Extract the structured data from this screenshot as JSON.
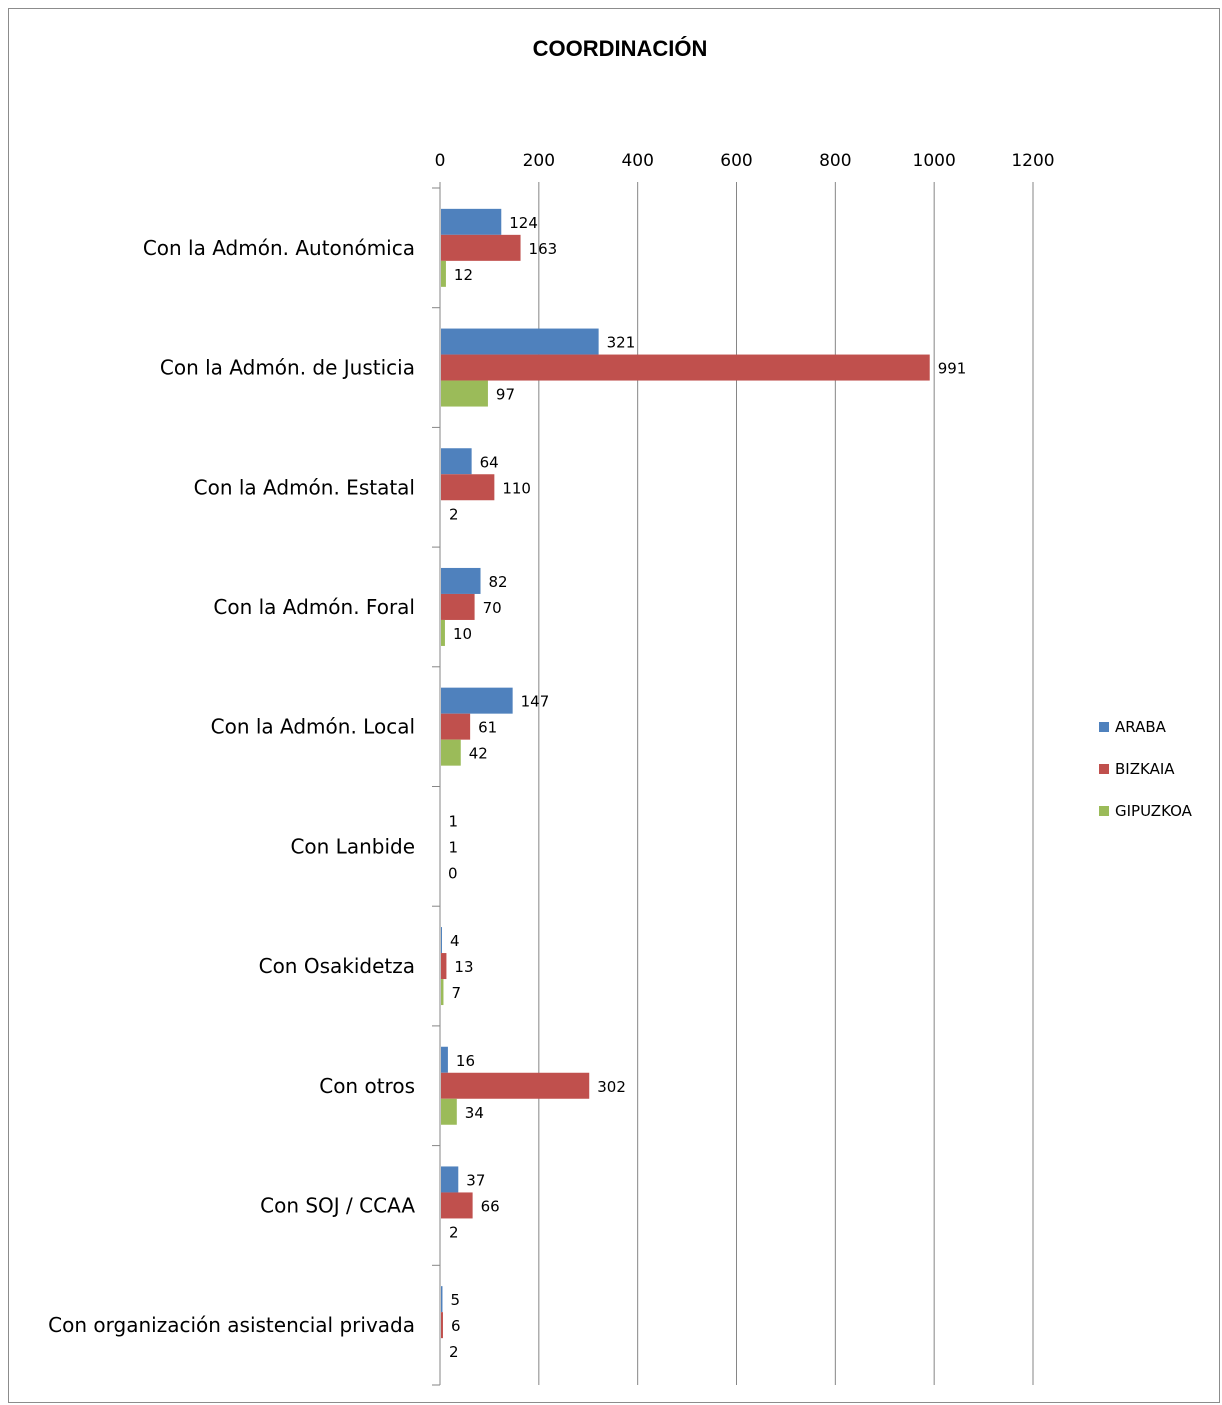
{
  "chart_data": {
    "type": "bar",
    "orientation": "horizontal",
    "title": "COORDINACIÓN",
    "xlim": [
      0,
      1200
    ],
    "ticks": [
      0,
      200,
      400,
      600,
      800,
      1000,
      1200
    ],
    "tick_labels": [
      "0",
      "200",
      "400",
      "600",
      "800",
      "1000",
      "1200"
    ],
    "x_axis_position": "top",
    "grid": true,
    "legend_position": "right",
    "categories": [
      "Con la Admón. Autonómica",
      "Con la Admón. de Justicia",
      "Con la Admón. Estatal",
      "Con la Admón. Foral",
      "Con la Admón. Local",
      "Con Lanbide",
      "Con Osakidetza",
      "Con otros",
      "Con SOJ / CCAA",
      "Con organización asistencial privada"
    ],
    "series": [
      {
        "name": "ARABA",
        "color": "#4f81bd",
        "values": [
          124,
          321,
          64,
          82,
          147,
          1,
          4,
          16,
          37,
          5
        ]
      },
      {
        "name": "BIZKAIA",
        "color": "#c0504d",
        "values": [
          163,
          991,
          110,
          70,
          61,
          1,
          13,
          302,
          66,
          6
        ]
      },
      {
        "name": "GIPUZKOA",
        "color": "#9bbb59",
        "values": [
          12,
          97,
          2,
          10,
          42,
          0,
          7,
          34,
          2,
          2
        ]
      }
    ]
  }
}
